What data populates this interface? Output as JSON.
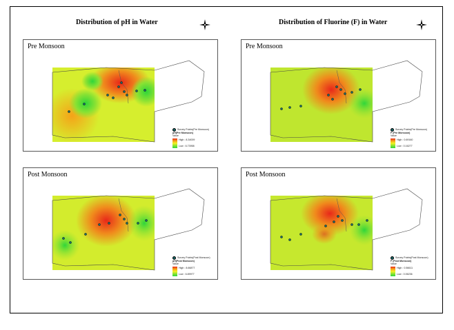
{
  "titles": {
    "left": "Distribution of pH in Water",
    "right": "Distribution of Fluorine (F) in Water"
  },
  "panels": [
    {
      "label": "Pre Monsoon",
      "legend": {
        "points": "Survey Points(Pre Monsoon)",
        "layer": "pH(Pre Monsoon)",
        "value_label": "Value",
        "high": "High : 8.34009",
        "low": "Low : 6.73958"
      }
    },
    {
      "label": "Pre Monsoon",
      "legend": {
        "points": "Survey Points(Pre Monsoon)",
        "layer": "F (Pre Monsoon)",
        "value_label": "Value",
        "high": "High : 0.69160",
        "low": "Low : 0.16277"
      }
    },
    {
      "label": "Post Monsoon",
      "legend": {
        "points": "Survey Points(Post Monsoon)",
        "layer": "pH(Post Monsoon)",
        "value_label": "Value",
        "high": "High : 8.66877",
        "low": "Low : 6.89977"
      }
    },
    {
      "label": "Post Monsoon",
      "legend": {
        "points": "Survey Points(Post Monsoon)",
        "layer": "F (Post Monsoon)",
        "value_label": "Value",
        "high": "High : 0.56611",
        "low": "Low : 0.06236"
      }
    }
  ],
  "colors": {
    "high": "#e8281a",
    "mid": "#f3f324",
    "low": "#2fd63a",
    "survey_point": "#1a6a6a"
  },
  "icons": [
    "north-arrow-compass-icon",
    "survey-point-icon"
  ]
}
